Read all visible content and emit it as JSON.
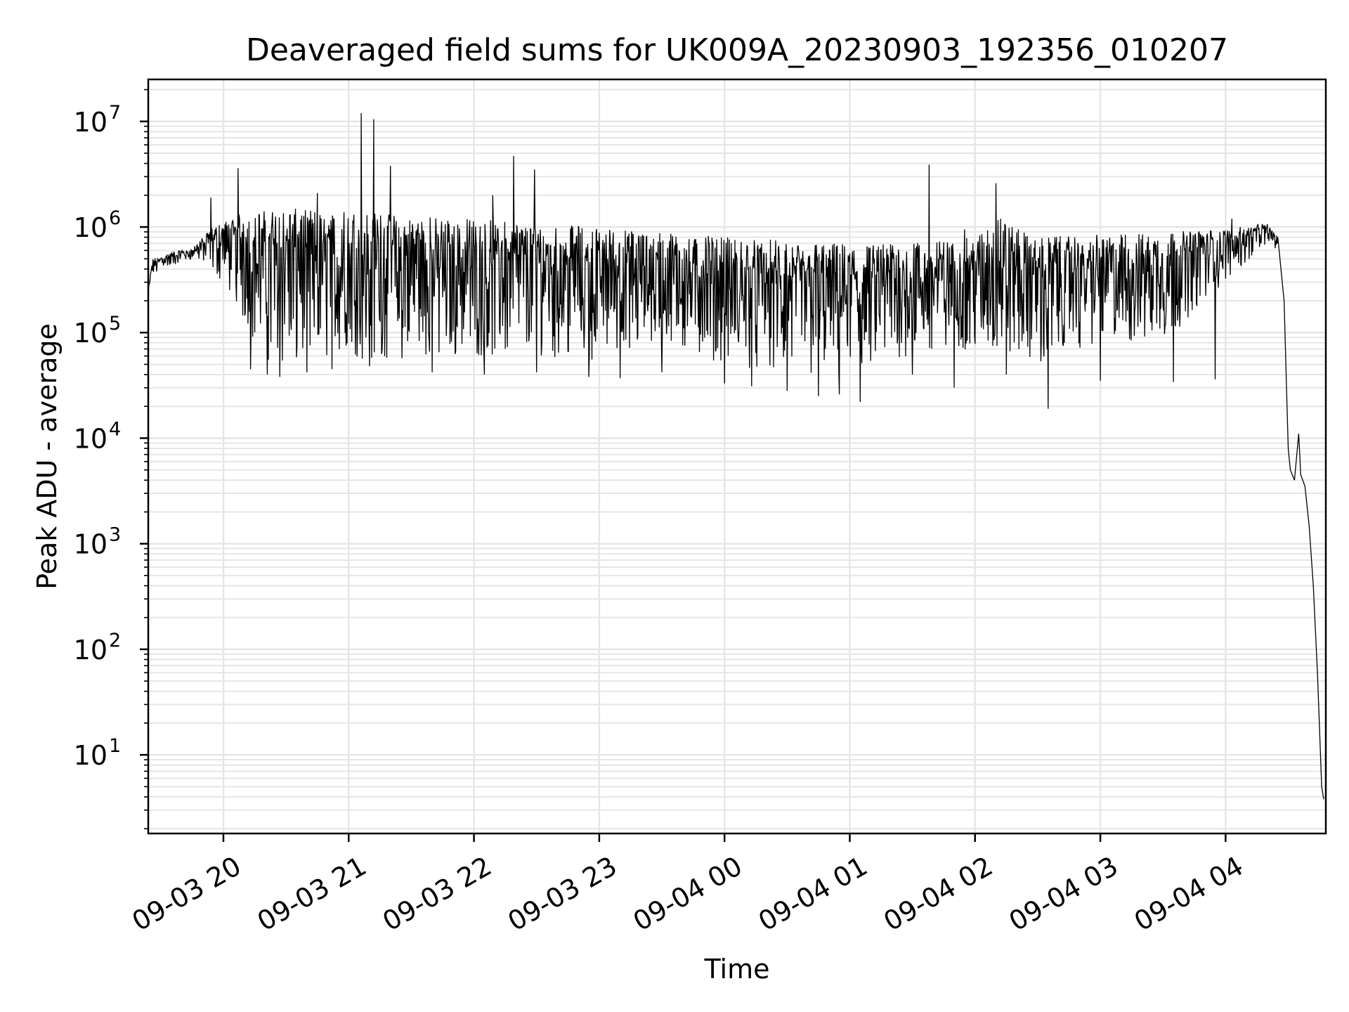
{
  "chart_data": {
    "type": "line",
    "title": "Deaveraged field sums for UK009A_20230903_192356_010207",
    "xlabel": "Time",
    "ylabel": "Peak ADU - average",
    "yscale": "log",
    "grid": true,
    "line_color": "#000000",
    "grid_color": "#e6e6e6",
    "xlim": [
      "2023-09-03 19:24",
      "2023-09-04 04:48"
    ],
    "ylim": [
      1.8,
      25000000
    ],
    "x_ticks": [
      {
        "time": "2023-09-03 20:00",
        "label": "09-03 20"
      },
      {
        "time": "2023-09-03 21:00",
        "label": "09-03 21"
      },
      {
        "time": "2023-09-03 22:00",
        "label": "09-03 22"
      },
      {
        "time": "2023-09-03 23:00",
        "label": "09-03 23"
      },
      {
        "time": "2023-09-04 00:00",
        "label": "09-04 00"
      },
      {
        "time": "2023-09-04 01:00",
        "label": "09-04 01"
      },
      {
        "time": "2023-09-04 02:00",
        "label": "09-04 02"
      },
      {
        "time": "2023-09-04 03:00",
        "label": "09-04 03"
      },
      {
        "time": "2023-09-04 04:00",
        "label": "09-04 04"
      }
    ],
    "y_ticks": [
      {
        "value": 10,
        "base": "10",
        "exp": "1"
      },
      {
        "value": 100,
        "base": "10",
        "exp": "2"
      },
      {
        "value": 1000,
        "base": "10",
        "exp": "3"
      },
      {
        "value": 10000,
        "base": "10",
        "exp": "4"
      },
      {
        "value": 100000,
        "base": "10",
        "exp": "5"
      },
      {
        "value": 1000000,
        "base": "10",
        "exp": "6"
      },
      {
        "value": 10000000,
        "base": "10",
        "exp": "7"
      }
    ],
    "series": [
      {
        "upper_envelope": [
          {
            "x": "2023-09-03 19:24",
            "y": 250000
          },
          {
            "x": "2023-09-03 19:26",
            "y": 500000
          },
          {
            "x": "2023-09-03 19:35",
            "y": 580000
          },
          {
            "x": "2023-09-03 19:45",
            "y": 620000
          },
          {
            "x": "2023-09-03 19:50",
            "y": 800000
          },
          {
            "x": "2023-09-03 19:55",
            "y": 1000000
          },
          {
            "x": "2023-09-03 20:10",
            "y": 1400000
          },
          {
            "x": "2023-09-03 20:30",
            "y": 1500000
          },
          {
            "x": "2023-09-03 21:00",
            "y": 1450000
          },
          {
            "x": "2023-09-03 21:30",
            "y": 1300000
          },
          {
            "x": "2023-09-03 22:00",
            "y": 1200000
          },
          {
            "x": "2023-09-03 22:30",
            "y": 1100000
          },
          {
            "x": "2023-09-03 23:00",
            "y": 1000000
          },
          {
            "x": "2023-09-03 23:30",
            "y": 900000
          },
          {
            "x": "2023-09-04 00:00",
            "y": 800000
          },
          {
            "x": "2023-09-04 00:30",
            "y": 750000
          },
          {
            "x": "2023-09-04 01:00",
            "y": 700000
          },
          {
            "x": "2023-09-04 01:30",
            "y": 700000
          },
          {
            "x": "2023-09-04 02:00",
            "y": 800000
          },
          {
            "x": "2023-09-04 02:10",
            "y": 1300000
          },
          {
            "x": "2023-09-04 02:30",
            "y": 800000
          },
          {
            "x": "2023-09-04 03:00",
            "y": 850000
          },
          {
            "x": "2023-09-04 03:30",
            "y": 900000
          },
          {
            "x": "2023-09-04 04:00",
            "y": 950000
          },
          {
            "x": "2023-09-04 04:20",
            "y": 1100000
          },
          {
            "x": "2023-09-04 04:25",
            "y": 800000
          }
        ],
        "lower_envelope": [
          {
            "x": "2023-09-03 19:24",
            "y": 250000
          },
          {
            "x": "2023-09-03 19:26",
            "y": 350000
          },
          {
            "x": "2023-09-03 19:35",
            "y": 420000
          },
          {
            "x": "2023-09-03 19:45",
            "y": 500000
          },
          {
            "x": "2023-09-03 19:55",
            "y": 400000
          },
          {
            "x": "2023-09-03 20:05",
            "y": 200000
          },
          {
            "x": "2023-09-03 20:15",
            "y": 80000
          },
          {
            "x": "2023-09-03 20:25",
            "y": 45000
          },
          {
            "x": "2023-09-03 20:40",
            "y": 50000
          },
          {
            "x": "2023-09-03 21:00",
            "y": 55000
          },
          {
            "x": "2023-09-03 21:30",
            "y": 55000
          },
          {
            "x": "2023-09-03 22:00",
            "y": 60000
          },
          {
            "x": "2023-09-03 22:30",
            "y": 60000
          },
          {
            "x": "2023-09-03 23:00",
            "y": 55000
          },
          {
            "x": "2023-09-03 23:30",
            "y": 80000
          },
          {
            "x": "2023-09-04 00:00",
            "y": 50000
          },
          {
            "x": "2023-09-04 00:30",
            "y": 40000
          },
          {
            "x": "2023-09-04 01:00",
            "y": 35000
          },
          {
            "x": "2023-09-04 01:30",
            "y": 60000
          },
          {
            "x": "2023-09-04 02:00",
            "y": 70000
          },
          {
            "x": "2023-09-04 02:30",
            "y": 50000
          },
          {
            "x": "2023-09-04 03:00",
            "y": 80000
          },
          {
            "x": "2023-09-04 03:30",
            "y": 80000
          },
          {
            "x": "2023-09-04 04:00",
            "y": 300000
          },
          {
            "x": "2023-09-04 04:20",
            "y": 700000
          },
          {
            "x": "2023-09-04 04:25",
            "y": 600000
          }
        ],
        "drops": [
          {
            "x": "2023-09-03 20:13",
            "y": 45000
          },
          {
            "x": "2023-09-03 20:21",
            "y": 40000
          },
          {
            "x": "2023-09-03 20:27",
            "y": 38000
          },
          {
            "x": "2023-09-03 20:40",
            "y": 42000
          },
          {
            "x": "2023-09-03 20:52",
            "y": 45000
          },
          {
            "x": "2023-09-03 21:10",
            "y": 48000
          },
          {
            "x": "2023-09-03 21:40",
            "y": 42000
          },
          {
            "x": "2023-09-03 22:05",
            "y": 40000
          },
          {
            "x": "2023-09-03 22:30",
            "y": 42000
          },
          {
            "x": "2023-09-03 22:55",
            "y": 38000
          },
          {
            "x": "2023-09-03 23:10",
            "y": 37000
          },
          {
            "x": "2023-09-03 23:30",
            "y": 42000
          },
          {
            "x": "2023-09-04 00:00",
            "y": 33000
          },
          {
            "x": "2023-09-04 00:13",
            "y": 31000
          },
          {
            "x": "2023-09-04 00:30",
            "y": 28000
          },
          {
            "x": "2023-09-04 00:45",
            "y": 25000
          },
          {
            "x": "2023-09-04 00:55",
            "y": 26000
          },
          {
            "x": "2023-09-04 01:05",
            "y": 22000
          },
          {
            "x": "2023-09-04 01:30",
            "y": 40000
          },
          {
            "x": "2023-09-04 01:50",
            "y": 30000
          },
          {
            "x": "2023-09-04 02:15",
            "y": 40000
          },
          {
            "x": "2023-09-04 02:35",
            "y": 19000
          },
          {
            "x": "2023-09-04 03:00",
            "y": 35000
          },
          {
            "x": "2023-09-04 03:35",
            "y": 34000
          },
          {
            "x": "2023-09-04 03:55",
            "y": 36000
          }
        ],
        "spikes": [
          {
            "x": "2023-09-03 19:54",
            "y": 1900000
          },
          {
            "x": "2023-09-03 20:07",
            "y": 3600000
          },
          {
            "x": "2023-09-03 20:45",
            "y": 2100000
          },
          {
            "x": "2023-09-03 21:06",
            "y": 12000000
          },
          {
            "x": "2023-09-03 21:12",
            "y": 10500000
          },
          {
            "x": "2023-09-03 21:20",
            "y": 3800000
          },
          {
            "x": "2023-09-03 22:09",
            "y": 2000000
          },
          {
            "x": "2023-09-03 22:19",
            "y": 4700000
          },
          {
            "x": "2023-09-03 22:29",
            "y": 3500000
          },
          {
            "x": "2023-09-04 01:38",
            "y": 3900000
          },
          {
            "x": "2023-09-04 01:55",
            "y": 950000
          },
          {
            "x": "2023-09-04 02:10",
            "y": 2600000
          },
          {
            "x": "2023-09-04 04:03",
            "y": 1200000
          }
        ],
        "falloff": [
          {
            "x": "2023-09-04 04:25",
            "y": 800000
          },
          {
            "x": "2023-09-04 04:28",
            "y": 200000
          },
          {
            "x": "2023-09-04 04:30",
            "y": 8000
          },
          {
            "x": "2023-09-04 04:31",
            "y": 5000
          },
          {
            "x": "2023-09-04 04:33",
            "y": 4000
          },
          {
            "x": "2023-09-04 04:35",
            "y": 11000
          },
          {
            "x": "2023-09-04 04:36",
            "y": 4500
          },
          {
            "x": "2023-09-04 04:38",
            "y": 3500
          },
          {
            "x": "2023-09-04 04:40",
            "y": 1500
          },
          {
            "x": "2023-09-04 04:42",
            "y": 400
          },
          {
            "x": "2023-09-04 04:44",
            "y": 60
          },
          {
            "x": "2023-09-04 04:46",
            "y": 5
          },
          {
            "x": "2023-09-04 04:47",
            "y": 3.8
          }
        ]
      }
    ]
  }
}
